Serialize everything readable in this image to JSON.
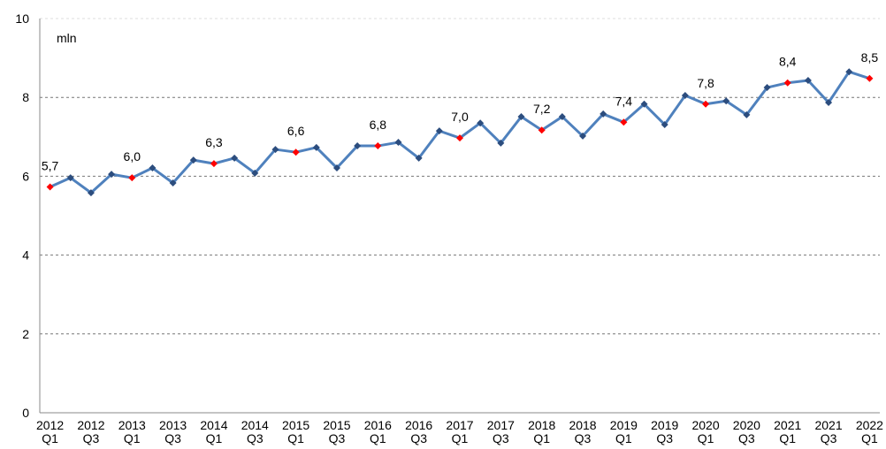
{
  "chart_data": {
    "type": "line",
    "annotation": "mln",
    "categories": [
      "2012 Q1",
      null,
      "2012 Q3",
      null,
      "2013 Q1",
      null,
      "2013 Q3",
      null,
      "2014 Q1",
      null,
      "2014 Q3",
      null,
      "2015 Q1",
      null,
      "2015 Q3",
      null,
      "2016 Q1",
      null,
      "2016 Q3",
      null,
      "2017 Q1",
      null,
      "2017 Q3",
      null,
      "2018 Q1",
      null,
      "2018 Q3",
      null,
      "2019 Q1",
      null,
      "2019 Q3",
      null,
      "2020 Q1",
      null,
      "2020 Q3",
      null,
      "2021 Q1",
      null,
      "2021 Q3",
      null,
      "2022 Q1"
    ],
    "series": [
      {
        "color": "#4f81bd",
        "marker_color": "#2c4d7e",
        "highlight_color": "#ff0000",
        "values": [
          5.73,
          5.96,
          5.58,
          6.05,
          5.96,
          6.21,
          5.83,
          6.41,
          6.32,
          6.46,
          6.08,
          6.68,
          6.61,
          6.73,
          6.21,
          6.77,
          6.77,
          6.86,
          6.46,
          7.15,
          6.97,
          7.35,
          6.84,
          7.51,
          7.17,
          7.51,
          7.02,
          7.58,
          7.37,
          7.83,
          7.31,
          8.05,
          7.83,
          7.91,
          7.56,
          8.25,
          8.37,
          8.43,
          7.87,
          8.65,
          8.48
        ],
        "value_labels": [
          "5,7",
          null,
          null,
          null,
          "6,0",
          null,
          null,
          null,
          "6,3",
          null,
          null,
          null,
          "6,6",
          null,
          null,
          null,
          "6,8",
          null,
          null,
          null,
          "7,0",
          null,
          null,
          null,
          "7,2",
          null,
          null,
          null,
          "7,4",
          null,
          null,
          null,
          "7,8",
          null,
          null,
          null,
          "8,4",
          null,
          null,
          null,
          "8,5"
        ]
      }
    ],
    "ylim": [
      0,
      10
    ],
    "yticks": [
      0,
      2,
      4,
      6,
      8,
      10
    ],
    "grid": true
  }
}
